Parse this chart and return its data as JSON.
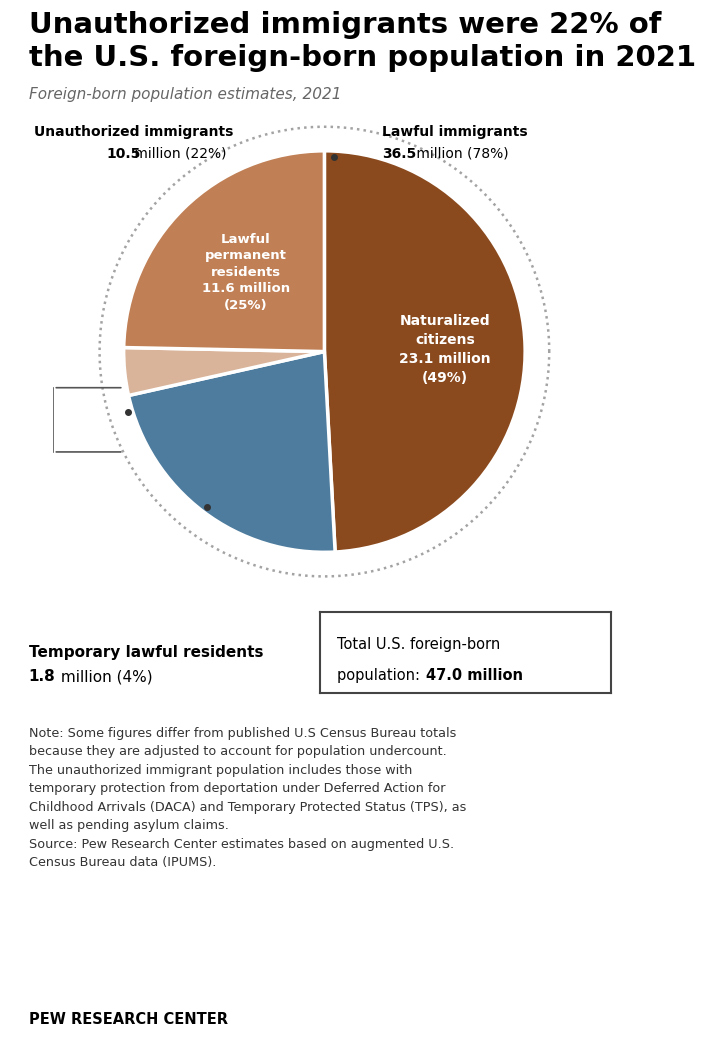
{
  "title_line1": "Unauthorized immigrants were 22% of",
  "title_line2": "the U.S. foreign-born population in 2021",
  "subtitle": "Foreign-born population estimates, 2021",
  "wedge_slices": [
    {
      "label": "Naturalized citizens",
      "value": 23.1,
      "pct": 49,
      "color": "#8B4A1E"
    },
    {
      "label": "Unauthorized immigrants",
      "value": 10.5,
      "pct": 22,
      "color": "#4d7c9e"
    },
    {
      "label": "Temporary lawful residents",
      "value": 1.8,
      "pct": 4,
      "color": "#d9b49a"
    },
    {
      "label": "Lawful permanent residents",
      "value": 11.6,
      "pct": 25,
      "color": "#c07f55"
    }
  ],
  "total": 47.0,
  "unauth_label_line1": "Unauthorized immigrants",
  "unauth_label_line2_bold": "10.5",
  "unauth_label_line2_rest": " million (22%)",
  "lawful_label_line1": "Lawful immigrants",
  "lawful_label_line2_bold": "36.5",
  "lawful_label_line2_rest": " million (78%)",
  "temp_label_line1": "Temporary lawful residents",
  "temp_label_line2_bold": "1.8",
  "temp_label_line2_rest": " million (4%)",
  "total_box_line1": "Total U.S. foreign-born",
  "total_box_line2_pre": "population: ",
  "total_box_line2_bold": "47.0 million",
  "note_text": "Note: Some figures differ from published U.S Census Bureau totals\nbecause they are adjusted to account for population undercount.\nThe unauthorized immigrant population includes those with\ntemporary protection from deportation under Deferred Action for\nChildhood Arrivals (DACA) and Temporary Protected Status (TPS), as\nwell as pending asylum claims.\nSource: Pew Research Center estimates based on augmented U.S.\nCensus Bureau data (IPUMS).",
  "source_label": "PEW RESEARCH CENTER",
  "bg_color": "#ffffff"
}
